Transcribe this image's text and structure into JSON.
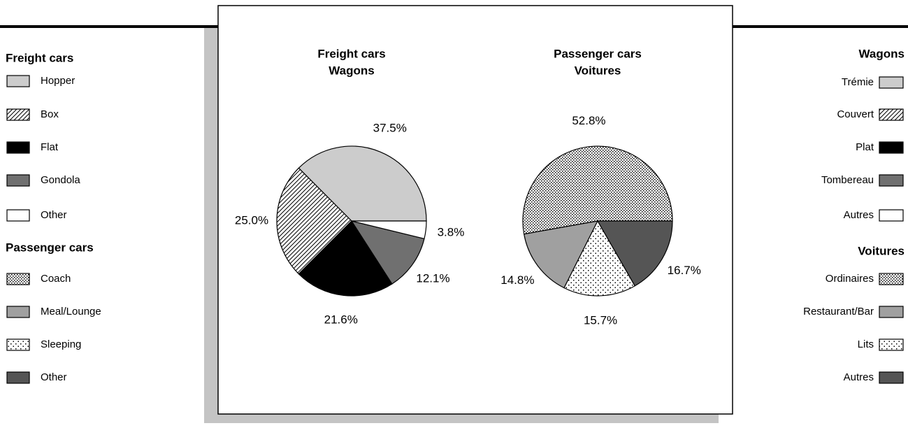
{
  "chart_data": [
    {
      "type": "pie",
      "title": "Freight cars",
      "subtitle": "Wagons",
      "categories": [
        "Hopper",
        "Box",
        "Flat",
        "Gondola",
        "Other"
      ],
      "categories_fr": [
        "Trémie",
        "Couvert",
        "Plat",
        "Tombereau",
        "Autres"
      ],
      "values": [
        37.5,
        25.0,
        21.6,
        12.1,
        3.8
      ],
      "value_labels": [
        "37.5%",
        "25.0%",
        "21.6%",
        "12.1%",
        "3.8%"
      ],
      "fills": [
        "#cccccc",
        "hatch",
        "#000000",
        "#707070",
        "#ffffff"
      ]
    },
    {
      "type": "pie",
      "title": "Passenger cars",
      "subtitle": "Voitures",
      "categories": [
        "Coach",
        "Meal/Lounge",
        "Sleeping",
        "Other"
      ],
      "categories_fr": [
        "Ordinaires",
        "Restaurant/Bar",
        "Lits",
        "Autres"
      ],
      "values": [
        52.8,
        14.8,
        15.7,
        16.7
      ],
      "value_labels": [
        "52.8%",
        "14.8%",
        "15.7%",
        "16.7%"
      ],
      "fills": [
        "densedots",
        "#a0a0a0",
        "sparsedots",
        "#555555"
      ]
    }
  ]
}
